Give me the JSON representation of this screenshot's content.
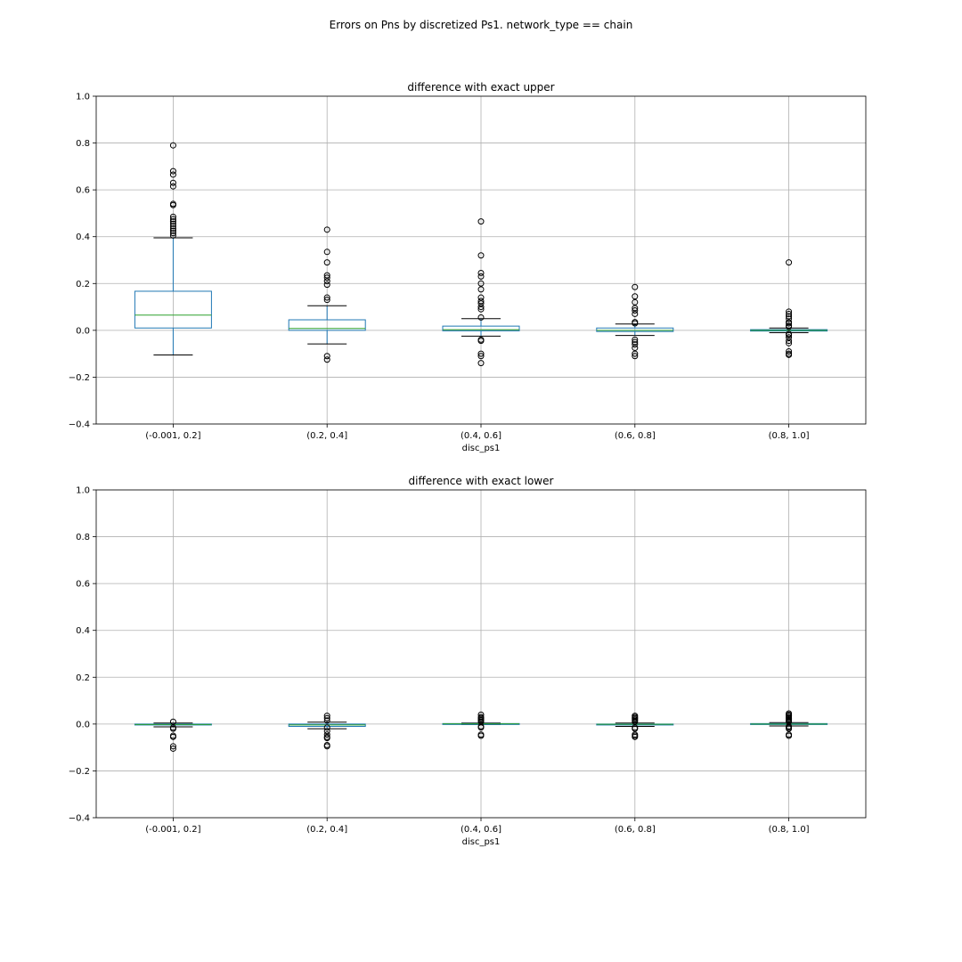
{
  "figure": {
    "suptitle": "Errors on Pns by discretized Ps1. network_type == chain"
  },
  "colors": {
    "box": "#1f77b4",
    "median": "#2ca02c",
    "whisker": "#1f77b4",
    "cap": "#000000",
    "flier": "#000000",
    "grid": "#b0b0b0",
    "spine": "#000000"
  },
  "chart_data": [
    {
      "type": "box",
      "title": "difference with exact upper",
      "xlabel": "disc_ps1",
      "ylabel": "",
      "ylim": [
        -0.4,
        1.0
      ],
      "yticks": [
        -0.4,
        -0.2,
        0.0,
        0.2,
        0.4,
        0.6,
        0.8,
        1.0
      ],
      "ytick_labels": [
        "−0.4",
        "−0.2",
        "0.0",
        "0.2",
        "0.4",
        "0.6",
        "0.8",
        "1.0"
      ],
      "grid": true,
      "categories": [
        "(-0.001, 0.2]",
        "(0.2, 0.4]",
        "(0.4, 0.6]",
        "(0.6, 0.8]",
        "(0.8, 1.0]"
      ],
      "boxes": [
        {
          "whislo": -0.105,
          "q1": 0.01,
          "med": 0.065,
          "q3": 0.167,
          "whishi": 0.395,
          "fliers": [
            0.79,
            0.68,
            0.665,
            0.63,
            0.615,
            0.54,
            0.535,
            0.485,
            0.475,
            0.465,
            0.455,
            0.445,
            0.435,
            0.425,
            0.415,
            0.405
          ]
        },
        {
          "whislo": -0.058,
          "q1": 0.0,
          "med": 0.008,
          "q3": 0.045,
          "whishi": 0.105,
          "fliers": [
            0.43,
            0.335,
            0.29,
            0.235,
            0.225,
            0.21,
            0.195,
            0.14,
            0.13,
            -0.11,
            -0.125
          ]
        },
        {
          "whislo": -0.025,
          "q1": -0.002,
          "med": 0.003,
          "q3": 0.018,
          "whishi": 0.05,
          "fliers": [
            0.465,
            0.32,
            0.245,
            0.23,
            0.2,
            0.175,
            0.14,
            0.125,
            0.115,
            0.1,
            0.09,
            0.055,
            -0.04,
            -0.045,
            -0.1,
            -0.11,
            -0.14
          ]
        },
        {
          "whislo": -0.022,
          "q1": -0.005,
          "med": 0.0,
          "q3": 0.01,
          "whishi": 0.027,
          "fliers": [
            0.185,
            0.145,
            0.12,
            0.095,
            0.085,
            0.07,
            0.035,
            0.03,
            -0.04,
            -0.05,
            -0.06,
            -0.075,
            -0.1,
            -0.11
          ]
        },
        {
          "whislo": -0.01,
          "q1": -0.003,
          "med": 0.0,
          "q3": 0.003,
          "whishi": 0.01,
          "fliers": [
            0.29,
            0.08,
            0.07,
            0.06,
            0.05,
            0.035,
            0.03,
            0.02,
            0.015,
            -0.015,
            -0.02,
            -0.03,
            -0.045,
            -0.055,
            -0.09,
            -0.1,
            -0.105
          ]
        }
      ]
    },
    {
      "type": "box",
      "title": "difference with exact lower",
      "xlabel": "disc_ps1",
      "ylabel": "",
      "ylim": [
        -0.4,
        1.0
      ],
      "yticks": [
        -0.4,
        -0.2,
        0.0,
        0.2,
        0.4,
        0.6,
        0.8,
        1.0
      ],
      "ytick_labels": [
        "−0.4",
        "−0.2",
        "0.0",
        "0.2",
        "0.4",
        "0.6",
        "0.8",
        "1.0"
      ],
      "grid": true,
      "categories": [
        "(-0.001, 0.2]",
        "(0.2, 0.4]",
        "(0.4, 0.6]",
        "(0.6, 0.8]",
        "(0.8, 1.0]"
      ],
      "boxes": [
        {
          "whislo": -0.012,
          "q1": -0.004,
          "med": -0.002,
          "q3": 0.0,
          "whishi": 0.004,
          "fliers": [
            0.01,
            -0.015,
            -0.02,
            -0.05,
            -0.055,
            -0.095,
            -0.105
          ]
        },
        {
          "whislo": -0.02,
          "q1": -0.01,
          "med": -0.004,
          "q3": 0.0,
          "whishi": 0.008,
          "fliers": [
            0.035,
            0.025,
            0.015,
            -0.015,
            -0.03,
            -0.045,
            -0.055,
            -0.06,
            -0.09,
            -0.095
          ]
        },
        {
          "whislo": -0.002,
          "q1": 0.0,
          "med": 0.001,
          "q3": 0.002,
          "whishi": 0.004,
          "fliers": [
            0.04,
            0.03,
            0.025,
            0.02,
            0.015,
            0.01,
            -0.01,
            -0.015,
            -0.045,
            -0.05
          ]
        },
        {
          "whislo": -0.01,
          "q1": -0.004,
          "med": -0.001,
          "q3": 0.0,
          "whishi": 0.004,
          "fliers": [
            0.035,
            0.03,
            0.025,
            0.02,
            0.015,
            0.01,
            -0.015,
            -0.02,
            -0.045,
            -0.05,
            -0.055
          ]
        },
        {
          "whislo": -0.008,
          "q1": -0.002,
          "med": 0.0,
          "q3": 0.002,
          "whishi": 0.006,
          "fliers": [
            0.045,
            0.04,
            0.035,
            0.03,
            0.025,
            0.02,
            0.015,
            0.01,
            -0.01,
            -0.015,
            -0.02,
            -0.045,
            -0.05
          ]
        }
      ]
    }
  ]
}
